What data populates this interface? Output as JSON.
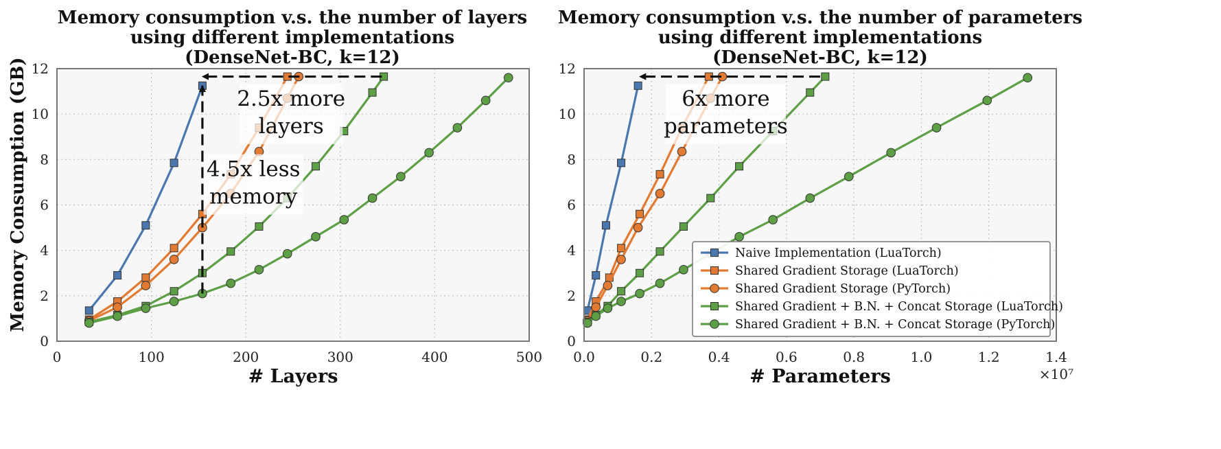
{
  "chart_data": [
    {
      "type": "line",
      "id": "left",
      "title": [
        "Memory consumption v.s. the number of layers",
        "using different implementations",
        "(DenseNet-BC, k=12)"
      ],
      "xlabel": "# Layers",
      "ylabel": "Memory Consumption (GB)",
      "xlim": [
        0,
        500
      ],
      "ylim": [
        0,
        12
      ],
      "xticks": [
        0,
        100,
        200,
        300,
        400,
        500
      ],
      "yticks": [
        0,
        2,
        4,
        6,
        8,
        10,
        12
      ],
      "grid": true,
      "series": [
        {
          "name": "Naive Implementation (LuaTorch)",
          "color": "#4a77ae",
          "marker": "square",
          "x": [
            34,
            64,
            94,
            124,
            154
          ],
          "y": [
            1.35,
            2.9,
            5.1,
            7.85,
            11.25
          ]
        },
        {
          "name": "Shared Gradient Storage (LuaTorch)",
          "color": "#e27a31",
          "marker": "square",
          "x": [
            34,
            64,
            94,
            124,
            154,
            184,
            214,
            244
          ],
          "y": [
            0.95,
            1.75,
            2.8,
            4.1,
            5.6,
            7.35,
            9.4,
            11.65
          ]
        },
        {
          "name": "Shared Gradient Storage (PyTorch)",
          "color": "#e27a31",
          "marker": "circle",
          "x": [
            34,
            64,
            94,
            124,
            154,
            184,
            214,
            244,
            256
          ],
          "y": [
            0.9,
            1.5,
            2.45,
            3.6,
            5.0,
            6.5,
            8.35,
            10.7,
            11.65
          ]
        },
        {
          "name": "Shared Gradient + B.N. + Concat Storage (LuaTorch)",
          "color": "#5d9f45",
          "marker": "square",
          "x": [
            34,
            64,
            94,
            124,
            154,
            184,
            214,
            244,
            274,
            304,
            334,
            346
          ],
          "y": [
            0.85,
            1.15,
            1.55,
            2.2,
            3.0,
            3.95,
            5.05,
            6.3,
            7.7,
            9.25,
            10.95,
            11.65
          ]
        },
        {
          "name": "Shared Gradient + B.N. + Concat Storage (PyTorch)",
          "color": "#5d9f45",
          "marker": "circle",
          "x": [
            34,
            64,
            94,
            124,
            154,
            184,
            214,
            244,
            274,
            304,
            334,
            364,
            394,
            424,
            454,
            478
          ],
          "y": [
            0.8,
            1.1,
            1.45,
            1.75,
            2.1,
            2.55,
            3.15,
            3.85,
            4.6,
            5.35,
            6.3,
            7.25,
            8.3,
            9.4,
            10.6,
            11.6
          ]
        }
      ],
      "annotations": [
        {
          "text": [
            "2.5x more",
            "layers"
          ],
          "x": 248,
          "y": 10.0
        },
        {
          "text": [
            "4.5x less",
            "memory"
          ],
          "x": 208,
          "y": 6.9
        }
      ],
      "arrows": [
        {
          "from": [
            344,
            11.65
          ],
          "to": [
            154,
            11.65
          ]
        },
        {
          "from": [
            154,
            2.1
          ],
          "to": [
            154,
            11.25
          ]
        }
      ]
    },
    {
      "type": "line",
      "id": "right",
      "title": [
        "Memory consumption v.s. the number of parameters",
        "using different implementations",
        "(DenseNet-BC, k=12)"
      ],
      "xlabel": "# Parameters",
      "ylabel": "",
      "x_exponent": "×10⁷",
      "xlim": [
        0,
        1.4
      ],
      "ylim": [
        0,
        12
      ],
      "xticks": [
        0.0,
        0.2,
        0.4,
        0.6,
        0.8,
        1.0,
        1.2,
        1.4
      ],
      "yticks": [
        0,
        2,
        4,
        6,
        8,
        10,
        12
      ],
      "grid": true,
      "legend": "bottom-right",
      "series": [
        {
          "name": "Naive Implementation (LuaTorch)",
          "color": "#4a77ae",
          "marker": "square",
          "x": [
            0.01,
            0.035,
            0.065,
            0.11,
            0.16
          ],
          "y": [
            1.35,
            2.9,
            5.1,
            7.85,
            11.25
          ]
        },
        {
          "name": "Shared Gradient Storage (LuaTorch)",
          "color": "#e27a31",
          "marker": "square",
          "x": [
            0.01,
            0.035,
            0.075,
            0.11,
            0.165,
            0.225,
            0.29,
            0.37
          ],
          "y": [
            0.95,
            1.75,
            2.8,
            4.1,
            5.6,
            7.35,
            9.4,
            11.65
          ]
        },
        {
          "name": "Shared Gradient Storage (PyTorch)",
          "color": "#e27a31",
          "marker": "circle",
          "x": [
            0.01,
            0.035,
            0.07,
            0.11,
            0.16,
            0.225,
            0.29,
            0.375,
            0.41
          ],
          "y": [
            0.9,
            1.5,
            2.45,
            3.6,
            5.0,
            6.5,
            8.35,
            10.7,
            11.65
          ]
        },
        {
          "name": "Shared Gradient + B.N. + Concat Storage (LuaTorch)",
          "color": "#5d9f45",
          "marker": "square",
          "x": [
            0.01,
            0.035,
            0.07,
            0.11,
            0.165,
            0.225,
            0.295,
            0.375,
            0.46,
            0.56,
            0.67,
            0.715
          ],
          "y": [
            0.85,
            1.15,
            1.55,
            2.2,
            3.0,
            3.95,
            5.05,
            6.3,
            7.7,
            9.25,
            10.95,
            11.65
          ]
        },
        {
          "name": "Shared Gradient + B.N. + Concat Storage (PyTorch)",
          "color": "#5d9f45",
          "marker": "circle",
          "x": [
            0.01,
            0.035,
            0.07,
            0.11,
            0.165,
            0.225,
            0.295,
            0.375,
            0.46,
            0.56,
            0.67,
            0.785,
            0.91,
            1.045,
            1.195,
            1.315
          ],
          "y": [
            0.8,
            1.1,
            1.45,
            1.75,
            2.1,
            2.55,
            3.15,
            3.85,
            4.6,
            5.35,
            6.3,
            7.25,
            8.3,
            9.4,
            10.6,
            11.6
          ]
        }
      ],
      "annotations": [
        {
          "text": [
            "6x more",
            "parameters"
          ],
          "x": 0.42,
          "y": 10.0
        }
      ],
      "arrows": [
        {
          "from": [
            0.7,
            11.65
          ],
          "to": [
            0.165,
            11.65
          ]
        }
      ]
    }
  ]
}
